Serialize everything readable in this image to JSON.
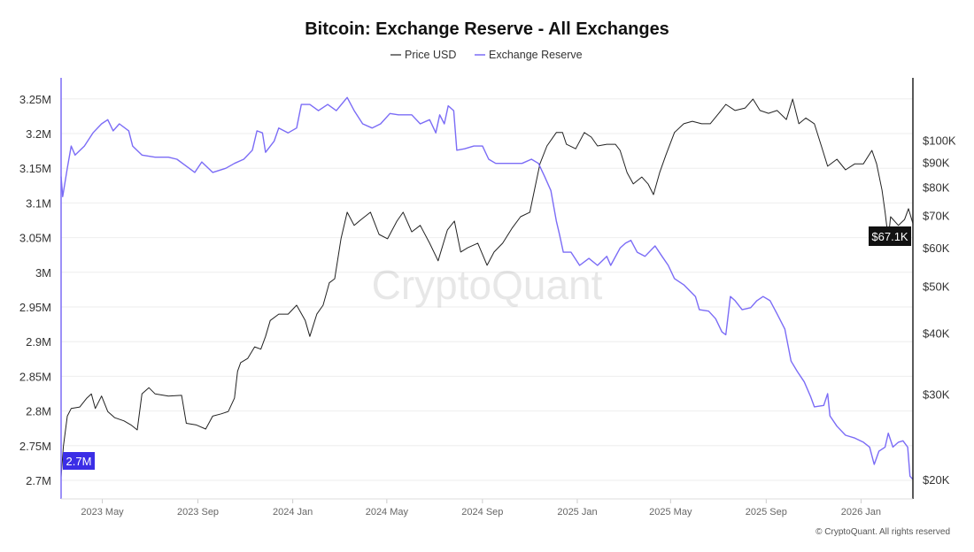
{
  "chart_data": {
    "type": "line",
    "title": "Bitcoin: Exchange Reserve - All Exchanges",
    "legend_position": "top-center",
    "grid": true,
    "watermark": "CryptoQuant",
    "footer": "© CryptoQuant. All rights reserved",
    "x_ticks": [
      "2023 May",
      "2023 Sep",
      "2024 Jan",
      "2024 May",
      "2024 Sep",
      "2025 Jan",
      "2025 May",
      "2025 Sep",
      "2026 Jan"
    ],
    "x_tick_dates": [
      "2023-05-01",
      "2023-09-01",
      "2024-01-01",
      "2024-05-01",
      "2024-09-01",
      "2025-01-01",
      "2025-05-01",
      "2025-09-01",
      "2026-01-01"
    ],
    "xlim": [
      "2023-03-09",
      "2026-03-09"
    ],
    "left_axis": {
      "scale": "linear",
      "ylim": [
        2680000,
        3280000
      ],
      "ticks": [
        {
          "v": 3250000,
          "label": "3.25M"
        },
        {
          "v": 3200000,
          "label": "3.2M"
        },
        {
          "v": 3150000,
          "label": "3.15M"
        },
        {
          "v": 3100000,
          "label": "3.1M"
        },
        {
          "v": 3050000,
          "label": "3.05M"
        },
        {
          "v": 3000000,
          "label": "3M"
        },
        {
          "v": 2950000,
          "label": "2.95M"
        },
        {
          "v": 2900000,
          "label": "2.9M"
        },
        {
          "v": 2850000,
          "label": "2.85M"
        },
        {
          "v": 2800000,
          "label": "2.8M"
        },
        {
          "v": 2750000,
          "label": "2.75M"
        },
        {
          "v": 2700000,
          "label": "2.7M"
        }
      ],
      "current_label": "2.7M"
    },
    "right_axis": {
      "scale": "log",
      "ticks": [
        {
          "v": 100000,
          "label": "$100K"
        },
        {
          "v": 90000,
          "label": "$90K"
        },
        {
          "v": 80000,
          "label": "$80K"
        },
        {
          "v": 70000,
          "label": "$70K"
        },
        {
          "v": 60000,
          "label": "$60K"
        },
        {
          "v": 50000,
          "label": "$50K"
        },
        {
          "v": 40000,
          "label": "$40K"
        },
        {
          "v": 30000,
          "label": "$30K"
        },
        {
          "v": 20000,
          "label": "$20K"
        }
      ],
      "current_label": "$67.1K"
    },
    "series": [
      {
        "name": "Price USD",
        "axis": "right",
        "color": "#222222",
        "points": [
          [
            "2023-03-09",
            20200
          ],
          [
            "2023-03-12",
            23400
          ],
          [
            "2023-03-17",
            27000
          ],
          [
            "2023-03-22",
            28000
          ],
          [
            "2023-04-02",
            28200
          ],
          [
            "2023-04-11",
            29400
          ],
          [
            "2023-04-17",
            30000
          ],
          [
            "2023-04-22",
            28000
          ],
          [
            "2023-04-30",
            29700
          ],
          [
            "2023-05-08",
            27600
          ],
          [
            "2023-05-17",
            26800
          ],
          [
            "2023-05-29",
            26400
          ],
          [
            "2023-06-07",
            25900
          ],
          [
            "2023-06-15",
            25300
          ],
          [
            "2023-06-21",
            30000
          ],
          [
            "2023-06-30",
            30900
          ],
          [
            "2023-07-08",
            30000
          ],
          [
            "2023-07-25",
            29700
          ],
          [
            "2023-08-11",
            29800
          ],
          [
            "2023-08-17",
            26100
          ],
          [
            "2023-08-30",
            25900
          ],
          [
            "2023-09-11",
            25400
          ],
          [
            "2023-09-20",
            27000
          ],
          [
            "2023-10-01",
            27300
          ],
          [
            "2023-10-10",
            27600
          ],
          [
            "2023-10-18",
            29400
          ],
          [
            "2023-10-22",
            33400
          ],
          [
            "2023-10-26",
            34800
          ],
          [
            "2023-11-04",
            35500
          ],
          [
            "2023-11-13",
            37500
          ],
          [
            "2023-11-21",
            37100
          ],
          [
            "2023-11-27",
            39400
          ],
          [
            "2023-12-03",
            42500
          ],
          [
            "2023-12-14",
            43800
          ],
          [
            "2023-12-26",
            43800
          ],
          [
            "2024-01-06",
            45700
          ],
          [
            "2024-01-17",
            42500
          ],
          [
            "2024-01-23",
            39400
          ],
          [
            "2024-02-01",
            43800
          ],
          [
            "2024-02-09",
            45700
          ],
          [
            "2024-02-17",
            50800
          ],
          [
            "2024-02-24",
            51800
          ],
          [
            "2024-03-03",
            62600
          ],
          [
            "2024-03-11",
            71000
          ],
          [
            "2024-03-20",
            66700
          ],
          [
            "2024-03-29",
            68600
          ],
          [
            "2024-04-10",
            71000
          ],
          [
            "2024-04-21",
            63900
          ],
          [
            "2024-05-02",
            62600
          ],
          [
            "2024-05-14",
            68100
          ],
          [
            "2024-05-22",
            71000
          ],
          [
            "2024-06-02",
            64700
          ],
          [
            "2024-06-13",
            66700
          ],
          [
            "2024-06-25",
            61300
          ],
          [
            "2024-07-06",
            56400
          ],
          [
            "2024-07-18",
            65300
          ],
          [
            "2024-07-27",
            68100
          ],
          [
            "2024-08-04",
            58800
          ],
          [
            "2024-08-13",
            60000
          ],
          [
            "2024-08-26",
            61300
          ],
          [
            "2024-09-07",
            55200
          ],
          [
            "2024-09-16",
            58800
          ],
          [
            "2024-09-27",
            61300
          ],
          [
            "2024-10-09",
            65800
          ],
          [
            "2024-10-20",
            69500
          ],
          [
            "2024-11-01",
            71000
          ],
          [
            "2024-11-08",
            80500
          ],
          [
            "2024-11-14",
            89300
          ],
          [
            "2024-11-23",
            97200
          ],
          [
            "2024-12-05",
            103600
          ],
          [
            "2024-12-13",
            103600
          ],
          [
            "2024-12-18",
            98000
          ],
          [
            "2024-12-30",
            95900
          ],
          [
            "2025-01-10",
            103600
          ],
          [
            "2025-01-19",
            101400
          ],
          [
            "2025-01-27",
            97200
          ],
          [
            "2025-02-08",
            98000
          ],
          [
            "2025-02-19",
            98000
          ],
          [
            "2025-02-25",
            95200
          ],
          [
            "2025-03-06",
            85700
          ],
          [
            "2025-03-14",
            81200
          ],
          [
            "2025-03-25",
            83900
          ],
          [
            "2025-04-02",
            81200
          ],
          [
            "2025-04-09",
            77200
          ],
          [
            "2025-04-17",
            85700
          ],
          [
            "2025-04-25",
            93200
          ],
          [
            "2025-05-06",
            103600
          ],
          [
            "2025-05-18",
            108000
          ],
          [
            "2025-05-29",
            109300
          ],
          [
            "2025-06-10",
            108000
          ],
          [
            "2025-06-21",
            108000
          ],
          [
            "2025-07-02",
            113500
          ],
          [
            "2025-07-11",
            118400
          ],
          [
            "2025-07-23",
            115000
          ],
          [
            "2025-08-05",
            116400
          ],
          [
            "2025-08-15",
            121400
          ],
          [
            "2025-08-24",
            115000
          ],
          [
            "2025-09-04",
            113500
          ],
          [
            "2025-09-15",
            115000
          ],
          [
            "2025-09-27",
            110200
          ],
          [
            "2025-10-05",
            121400
          ],
          [
            "2025-10-13",
            108000
          ],
          [
            "2025-10-22",
            111000
          ],
          [
            "2025-11-02",
            108000
          ],
          [
            "2025-11-11",
            97200
          ],
          [
            "2025-11-19",
            88300
          ],
          [
            "2025-12-01",
            91300
          ],
          [
            "2025-12-12",
            86800
          ],
          [
            "2025-12-24",
            89300
          ],
          [
            "2026-01-04",
            89300
          ],
          [
            "2026-01-15",
            95200
          ],
          [
            "2026-01-21",
            89300
          ],
          [
            "2026-01-28",
            78900
          ],
          [
            "2026-02-01",
            71000
          ],
          [
            "2026-02-05",
            62600
          ],
          [
            "2026-02-08",
            69500
          ],
          [
            "2026-02-18",
            66700
          ],
          [
            "2026-02-26",
            68600
          ],
          [
            "2026-03-03",
            72200
          ],
          [
            "2026-03-09",
            67100
          ]
        ]
      },
      {
        "name": "Exchange Reserve",
        "axis": "left",
        "color": "#7b6cf6",
        "points": [
          [
            "2023-03-09",
            3138000
          ],
          [
            "2023-03-11",
            3109000
          ],
          [
            "2023-03-17",
            3150000
          ],
          [
            "2023-03-22",
            3182000
          ],
          [
            "2023-03-27",
            3169000
          ],
          [
            "2023-04-08",
            3182000
          ],
          [
            "2023-04-19",
            3201000
          ],
          [
            "2023-04-30",
            3214000
          ],
          [
            "2023-05-08",
            3220000
          ],
          [
            "2023-05-15",
            3204000
          ],
          [
            "2023-05-23",
            3214000
          ],
          [
            "2023-06-04",
            3204000
          ],
          [
            "2023-06-09",
            3182000
          ],
          [
            "2023-06-21",
            3169000
          ],
          [
            "2023-07-08",
            3166000
          ],
          [
            "2023-07-25",
            3166000
          ],
          [
            "2023-08-05",
            3163000
          ],
          [
            "2023-08-17",
            3153000
          ],
          [
            "2023-08-28",
            3144000
          ],
          [
            "2023-09-06",
            3159000
          ],
          [
            "2023-09-20",
            3144000
          ],
          [
            "2023-10-07",
            3150000
          ],
          [
            "2023-10-18",
            3157000
          ],
          [
            "2023-10-30",
            3163000
          ],
          [
            "2023-11-10",
            3176000
          ],
          [
            "2023-11-16",
            3204000
          ],
          [
            "2023-11-23",
            3201000
          ],
          [
            "2023-11-27",
            3173000
          ],
          [
            "2023-12-08",
            3189000
          ],
          [
            "2023-12-14",
            3208000
          ],
          [
            "2023-12-26",
            3201000
          ],
          [
            "2024-01-06",
            3208000
          ],
          [
            "2024-01-12",
            3242000
          ],
          [
            "2024-01-23",
            3242000
          ],
          [
            "2024-02-03",
            3233000
          ],
          [
            "2024-02-15",
            3242000
          ],
          [
            "2024-02-26",
            3233000
          ],
          [
            "2024-03-11",
            3252000
          ],
          [
            "2024-03-20",
            3233000
          ],
          [
            "2024-03-31",
            3214000
          ],
          [
            "2024-04-12",
            3208000
          ],
          [
            "2024-04-23",
            3214000
          ],
          [
            "2024-05-05",
            3229000
          ],
          [
            "2024-05-16",
            3227000
          ],
          [
            "2024-06-02",
            3227000
          ],
          [
            "2024-06-13",
            3214000
          ],
          [
            "2024-06-25",
            3220000
          ],
          [
            "2024-07-03",
            3201000
          ],
          [
            "2024-07-08",
            3227000
          ],
          [
            "2024-07-14",
            3214000
          ],
          [
            "2024-07-19",
            3240000
          ],
          [
            "2024-07-26",
            3233000
          ],
          [
            "2024-07-30",
            3176000
          ],
          [
            "2024-08-09",
            3178000
          ],
          [
            "2024-08-21",
            3182000
          ],
          [
            "2024-09-01",
            3182000
          ],
          [
            "2024-09-09",
            3163000
          ],
          [
            "2024-09-18",
            3157000
          ],
          [
            "2024-10-05",
            3157000
          ],
          [
            "2024-10-22",
            3157000
          ],
          [
            "2024-11-03",
            3163000
          ],
          [
            "2024-11-12",
            3157000
          ],
          [
            "2024-11-20",
            3138000
          ],
          [
            "2024-11-28",
            3118000
          ],
          [
            "2024-12-05",
            3074000
          ],
          [
            "2024-12-09",
            3055000
          ],
          [
            "2024-12-14",
            3029000
          ],
          [
            "2024-12-24",
            3029000
          ],
          [
            "2025-01-04",
            3010000
          ],
          [
            "2025-01-16",
            3020000
          ],
          [
            "2025-01-27",
            3010000
          ],
          [
            "2025-02-08",
            3023000
          ],
          [
            "2025-02-13",
            3010000
          ],
          [
            "2025-02-25",
            3035000
          ],
          [
            "2025-03-04",
            3042000
          ],
          [
            "2025-03-11",
            3046000
          ],
          [
            "2025-03-19",
            3029000
          ],
          [
            "2025-03-29",
            3023000
          ],
          [
            "2025-04-11",
            3038000
          ],
          [
            "2025-04-20",
            3023000
          ],
          [
            "2025-04-28",
            3010000
          ],
          [
            "2025-05-06",
            2991000
          ],
          [
            "2025-05-18",
            2982000
          ],
          [
            "2025-06-02",
            2965000
          ],
          [
            "2025-06-07",
            2946000
          ],
          [
            "2025-06-19",
            2944000
          ],
          [
            "2025-06-28",
            2933000
          ],
          [
            "2025-07-06",
            2914000
          ],
          [
            "2025-07-11",
            2910000
          ],
          [
            "2025-07-17",
            2965000
          ],
          [
            "2025-07-23",
            2959000
          ],
          [
            "2025-08-01",
            2946000
          ],
          [
            "2025-08-12",
            2949000
          ],
          [
            "2025-08-20",
            2959000
          ],
          [
            "2025-08-28",
            2965000
          ],
          [
            "2025-09-06",
            2959000
          ],
          [
            "2025-09-15",
            2940000
          ],
          [
            "2025-09-25",
            2918000
          ],
          [
            "2025-10-03",
            2872000
          ],
          [
            "2025-10-11",
            2857000
          ],
          [
            "2025-10-20",
            2842000
          ],
          [
            "2025-10-28",
            2821000
          ],
          [
            "2025-11-02",
            2806000
          ],
          [
            "2025-11-14",
            2808000
          ],
          [
            "2025-11-19",
            2825000
          ],
          [
            "2025-11-22",
            2793000
          ],
          [
            "2025-12-01",
            2778000
          ],
          [
            "2025-12-12",
            2765000
          ],
          [
            "2025-12-24",
            2761000
          ],
          [
            "2026-01-04",
            2755000
          ],
          [
            "2026-01-12",
            2748000
          ],
          [
            "2026-01-18",
            2723000
          ],
          [
            "2026-01-24",
            2742000
          ],
          [
            "2026-02-01",
            2748000
          ],
          [
            "2026-02-05",
            2768000
          ],
          [
            "2026-02-11",
            2748000
          ],
          [
            "2026-02-18",
            2755000
          ],
          [
            "2026-02-24",
            2757000
          ],
          [
            "2026-03-02",
            2748000
          ],
          [
            "2026-03-05",
            2706000
          ],
          [
            "2026-03-09",
            2701000
          ]
        ]
      }
    ]
  }
}
